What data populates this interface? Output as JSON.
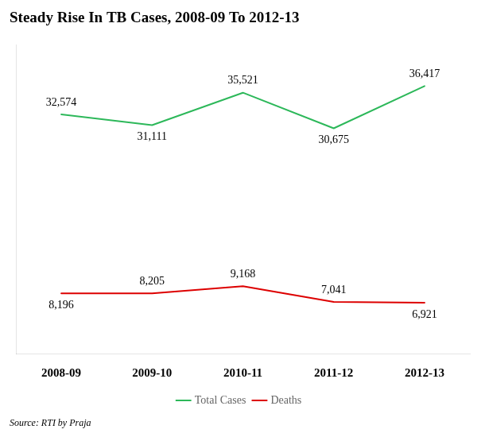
{
  "chart_data": {
    "type": "line",
    "title": "Steady Rise In TB Cases, 2008-09 To 2012-13",
    "annotations": [
      "Source: RTI by Praja"
    ],
    "categories": [
      "2008-09",
      "2009-10",
      "2010-11",
      "2011-12",
      "2012-13"
    ],
    "series": [
      {
        "name": "Total Cases",
        "color": "#2db85a",
        "values": [
          32574,
          31111,
          35521,
          30675,
          36417
        ],
        "value_labels": [
          "32,574",
          "31,111",
          "35,521",
          "30,675",
          "36,417"
        ]
      },
      {
        "name": "Deaths",
        "color": "#dd0000",
        "values": [
          8196,
          8205,
          9168,
          7041,
          6921
        ],
        "value_labels": [
          "8,196",
          "8,205",
          "9,168",
          "7,041",
          "6,921"
        ]
      }
    ],
    "ylim": [
      0,
      42000
    ],
    "grid": false,
    "legend": "bottom",
    "data_labels": true,
    "tick_labels": "x"
  }
}
